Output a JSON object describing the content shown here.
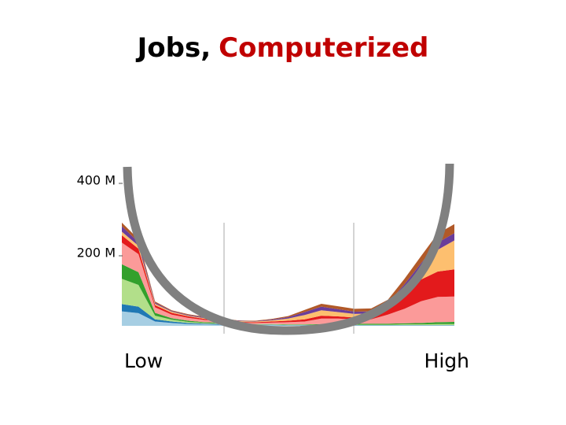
{
  "chart_data": {
    "type": "stacked-area",
    "title": "Jobs,",
    "title_highlight": "Computerized",
    "x_labels": [
      "Low",
      "High"
    ],
    "x": [
      0,
      5,
      10,
      15,
      20,
      25,
      30,
      35,
      40,
      45,
      50,
      55,
      60,
      65,
      70,
      75,
      80,
      85,
      90,
      95,
      100
    ],
    "xlim": [
      0,
      100
    ],
    "ylim": [
      0,
      420
    ],
    "yticks": [
      {
        "value": 200,
        "label": "200 M"
      },
      {
        "value": 400,
        "label": "400 M"
      }
    ],
    "series": [
      {
        "color": "#a6cee3",
        "values": [
          40,
          35,
          12,
          8,
          5,
          4,
          3,
          2,
          2,
          2,
          1,
          1,
          1,
          1,
          1,
          1,
          1,
          1,
          1,
          1,
          1
        ]
      },
      {
        "color": "#1f78b4",
        "values": [
          20,
          18,
          6,
          4,
          3,
          2,
          2,
          1,
          1,
          1,
          1,
          1,
          1,
          1,
          1,
          1,
          1,
          1,
          1,
          1,
          1
        ]
      },
      {
        "color": "#b2df8a",
        "values": [
          70,
          60,
          10,
          5,
          3,
          2,
          2,
          1,
          1,
          1,
          1,
          1,
          1,
          1,
          1,
          1,
          1,
          2,
          2,
          3,
          3
        ]
      },
      {
        "color": "#33a02c",
        "values": [
          40,
          35,
          8,
          4,
          3,
          2,
          2,
          1,
          1,
          1,
          1,
          1,
          2,
          2,
          3,
          3,
          3,
          3,
          4,
          5,
          6
        ]
      },
      {
        "color": "#fb9a99",
        "values": [
          60,
          50,
          15,
          10,
          8,
          6,
          5,
          4,
          3,
          4,
          6,
          8,
          15,
          15,
          12,
          12,
          25,
          40,
          60,
          70,
          70
        ]
      },
      {
        "color": "#e31a1c",
        "values": [
          20,
          15,
          6,
          5,
          4,
          3,
          3,
          2,
          2,
          3,
          4,
          6,
          8,
          6,
          5,
          6,
          15,
          45,
          60,
          70,
          75
        ]
      },
      {
        "color": "#fdbf6f",
        "values": [
          10,
          8,
          4,
          3,
          2,
          2,
          2,
          2,
          2,
          3,
          6,
          12,
          15,
          12,
          10,
          10,
          10,
          15,
          30,
          60,
          80
        ]
      },
      {
        "color": "#6a3d9a",
        "values": [
          15,
          10,
          3,
          2,
          2,
          2,
          1,
          1,
          1,
          2,
          4,
          8,
          10,
          8,
          6,
          6,
          6,
          8,
          15,
          20,
          20
        ]
      },
      {
        "color": "#b15928",
        "values": [
          10,
          8,
          3,
          2,
          2,
          2,
          1,
          1,
          1,
          2,
          3,
          6,
          8,
          8,
          8,
          8,
          10,
          15,
          20,
          25,
          25
        ]
      }
    ]
  }
}
